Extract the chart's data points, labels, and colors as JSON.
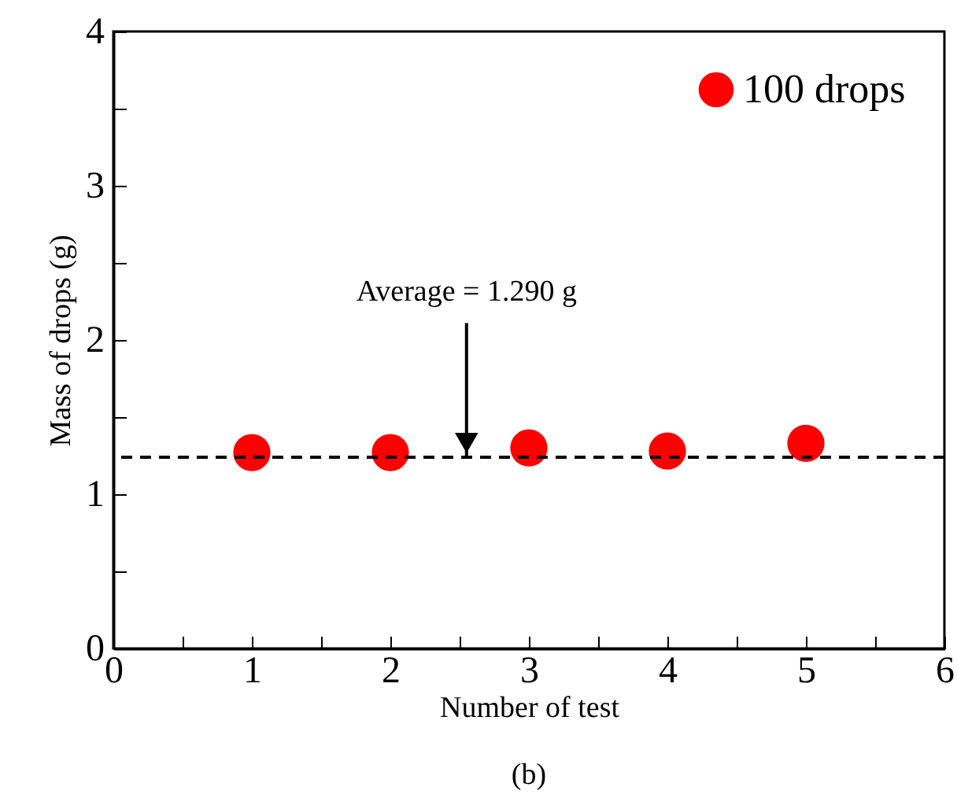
{
  "chart_data": {
    "type": "scatter",
    "xlabel": "Number of test",
    "ylabel": "Mass of drops (g)",
    "x": [
      1,
      2,
      3,
      4,
      5
    ],
    "series": [
      {
        "name": "100 drops",
        "color": "#ff0000",
        "values": [
          1.27,
          1.27,
          1.3,
          1.28,
          1.33
        ]
      }
    ],
    "xlim": [
      0,
      6
    ],
    "xticks": [
      0,
      {
        "value": 0.5,
        "label": null
      },
      1,
      {
        "value": 1.5,
        "label": null
      },
      2,
      {
        "value": 2.5,
        "label": null
      },
      3,
      {
        "value": 3.5,
        "label": null
      },
      4,
      {
        "value": 4.5,
        "label": null
      },
      5,
      {
        "value": 5.5,
        "label": null
      },
      6
    ],
    "ylim": [
      0,
      4
    ],
    "yticks": [
      0,
      {
        "value": 0.5,
        "label": null
      },
      1,
      {
        "value": 1.5,
        "label": null
      },
      2,
      {
        "value": 2.5,
        "label": null
      },
      3,
      {
        "value": 3.5,
        "label": null
      },
      4
    ],
    "ref_lines": [
      {
        "axis": "y",
        "value": 1.24,
        "color": "#000000",
        "line_style": "dashed"
      }
    ],
    "annotations": [
      {
        "text": "Average = 1.290 g",
        "x": 2.55,
        "y": 1.24
      },
      "(b)"
    ],
    "marker": "circle",
    "legend": "top right",
    "grid": false
  }
}
